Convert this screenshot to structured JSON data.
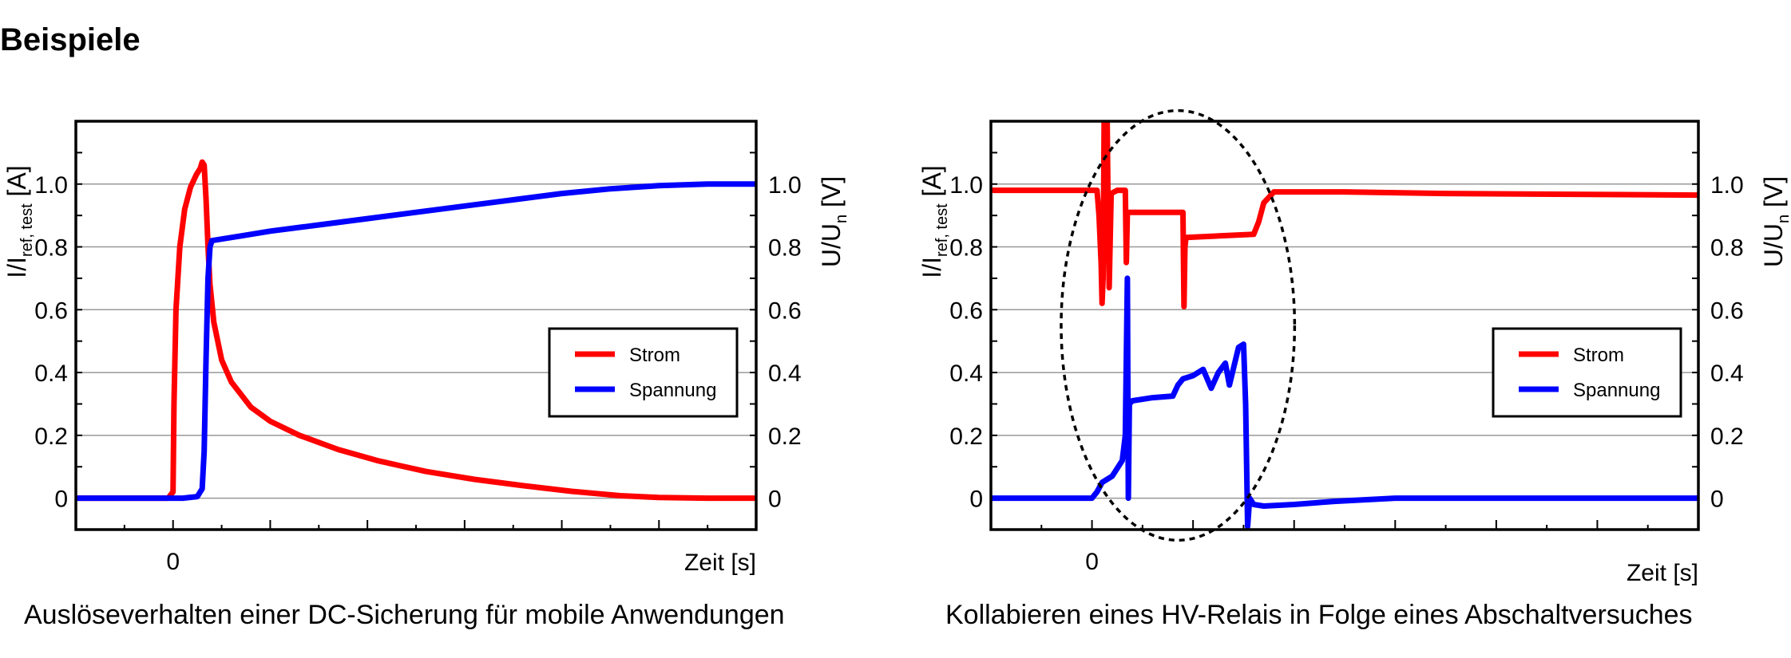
{
  "page": {
    "title": "Beispiele"
  },
  "chart_data": [
    {
      "type": "line",
      "caption": "Auslöseverhalten einer DC-Sicherung für mobile Anwendungen",
      "xlabel": "Zeit [s]",
      "x_tick_labels": [
        "0"
      ],
      "ylabel_left": {
        "main": "I/I",
        "sub": "ref, test",
        "unit": " [A]"
      },
      "ylabel_right": {
        "main": "U/U",
        "sub": "n",
        "unit": " [V]"
      },
      "ylim": [
        -0.1,
        1.2
      ],
      "xlim": [
        -1,
        6
      ],
      "y_ticks": [
        0,
        0.2,
        0.4,
        0.6,
        0.8,
        1.0
      ],
      "y_tick_labels": [
        "0",
        "0.2",
        "0.4",
        "0.6",
        "0.8",
        "1.0"
      ],
      "grid": true,
      "legend": {
        "placement": "right"
      },
      "series": [
        {
          "name": "Strom",
          "color": "#ff0000",
          "points": [
            [
              -1,
              0
            ],
            [
              -0.05,
              0
            ],
            [
              0,
              0.02
            ],
            [
              0.01,
              0.3
            ],
            [
              0.03,
              0.6
            ],
            [
              0.07,
              0.8
            ],
            [
              0.12,
              0.92
            ],
            [
              0.18,
              0.99
            ],
            [
              0.24,
              1.03
            ],
            [
              0.28,
              1.05
            ],
            [
              0.3,
              1.07
            ],
            [
              0.32,
              1.06
            ],
            [
              0.34,
              0.95
            ],
            [
              0.36,
              0.8
            ],
            [
              0.38,
              0.68
            ],
            [
              0.42,
              0.56
            ],
            [
              0.5,
              0.44
            ],
            [
              0.6,
              0.37
            ],
            [
              0.8,
              0.29
            ],
            [
              1.0,
              0.245
            ],
            [
              1.3,
              0.2
            ],
            [
              1.7,
              0.155
            ],
            [
              2.1,
              0.12
            ],
            [
              2.6,
              0.085
            ],
            [
              3.1,
              0.06
            ],
            [
              3.6,
              0.04
            ],
            [
              4.1,
              0.022
            ],
            [
              4.6,
              0.008
            ],
            [
              5.0,
              0.002
            ],
            [
              5.5,
              0
            ],
            [
              6,
              0
            ]
          ]
        },
        {
          "name": "Spannung",
          "color": "#0000ff",
          "points": [
            [
              -1,
              0
            ],
            [
              0.1,
              0
            ],
            [
              0.25,
              0.005
            ],
            [
              0.3,
              0.03
            ],
            [
              0.32,
              0.15
            ],
            [
              0.34,
              0.45
            ],
            [
              0.36,
              0.7
            ],
            [
              0.38,
              0.8
            ],
            [
              0.4,
              0.82
            ],
            [
              0.5,
              0.825
            ],
            [
              0.7,
              0.835
            ],
            [
              1.0,
              0.85
            ],
            [
              1.5,
              0.87
            ],
            [
              2.0,
              0.89
            ],
            [
              2.5,
              0.91
            ],
            [
              3.0,
              0.93
            ],
            [
              3.5,
              0.95
            ],
            [
              4.0,
              0.97
            ],
            [
              4.5,
              0.985
            ],
            [
              5.0,
              0.995
            ],
            [
              5.5,
              1.0
            ],
            [
              6,
              1.0
            ]
          ]
        }
      ]
    },
    {
      "type": "line",
      "caption": "Kollabieren eines HV-Relais in Folge eines Abschaltversuches",
      "xlabel": "Zeit [s]",
      "x_tick_labels": [
        "0"
      ],
      "ylabel_left": {
        "main": "I/I",
        "sub": "ref, test",
        "unit": " [A]"
      },
      "ylabel_right": {
        "main": "U/U",
        "sub": "n",
        "unit": " [V]"
      },
      "ylim": [
        -0.1,
        1.2
      ],
      "xlim": [
        -1,
        6
      ],
      "y_ticks": [
        0,
        0.2,
        0.4,
        0.6,
        0.8,
        1.0
      ],
      "y_tick_labels": [
        "0",
        "0.2",
        "0.4",
        "0.6",
        "0.8",
        "1.0"
      ],
      "grid": true,
      "legend": {
        "placement": "right"
      },
      "annotation": {
        "shape": "dashed-ellipse",
        "center": [
          0.85,
          0.55
        ],
        "radii": [
          1.5,
          0.72
        ]
      },
      "series": [
        {
          "name": "Strom",
          "color": "#ff0000",
          "points": [
            [
              -1,
              0.98
            ],
            [
              0.05,
              0.98
            ],
            [
              0.07,
              0.9
            ],
            [
              0.09,
              0.75
            ],
            [
              0.1,
              0.62
            ],
            [
              0.11,
              0.7
            ],
            [
              0.12,
              1.2
            ],
            [
              0.14,
              0.99
            ],
            [
              0.15,
              1.2
            ],
            [
              0.16,
              0.9
            ],
            [
              0.17,
              0.67
            ],
            [
              0.19,
              0.97
            ],
            [
              0.25,
              0.98
            ],
            [
              0.33,
              0.98
            ],
            [
              0.34,
              0.75
            ],
            [
              0.35,
              0.91
            ],
            [
              0.9,
              0.91
            ],
            [
              0.91,
              0.61
            ],
            [
              0.92,
              0.8
            ],
            [
              0.93,
              0.83
            ],
            [
              1.6,
              0.84
            ],
            [
              1.65,
              0.88
            ],
            [
              1.7,
              0.94
            ],
            [
              1.8,
              0.975
            ],
            [
              2.5,
              0.975
            ],
            [
              3.5,
              0.97
            ],
            [
              6,
              0.965
            ]
          ]
        },
        {
          "name": "Spannung",
          "color": "#0000ff",
          "points": [
            [
              -1,
              0
            ],
            [
              0.0,
              0
            ],
            [
              0.05,
              0.02
            ],
            [
              0.1,
              0.05
            ],
            [
              0.2,
              0.07
            ],
            [
              0.3,
              0.12
            ],
            [
              0.33,
              0.2
            ],
            [
              0.34,
              0.45
            ],
            [
              0.35,
              0.7
            ],
            [
              0.36,
              0
            ],
            [
              0.37,
              0.3
            ],
            [
              0.4,
              0.31
            ],
            [
              0.6,
              0.32
            ],
            [
              0.8,
              0.325
            ],
            [
              0.85,
              0.36
            ],
            [
              0.9,
              0.38
            ],
            [
              1.0,
              0.39
            ],
            [
              1.1,
              0.41
            ],
            [
              1.18,
              0.35
            ],
            [
              1.25,
              0.4
            ],
            [
              1.32,
              0.43
            ],
            [
              1.36,
              0.36
            ],
            [
              1.45,
              0.48
            ],
            [
              1.5,
              0.49
            ],
            [
              1.52,
              0.3
            ],
            [
              1.54,
              -0.09
            ],
            [
              1.56,
              0
            ],
            [
              1.6,
              -0.02
            ],
            [
              1.7,
              -0.025
            ],
            [
              2.0,
              -0.02
            ],
            [
              2.4,
              -0.01
            ],
            [
              3.0,
              0
            ],
            [
              6,
              0
            ]
          ]
        }
      ]
    }
  ]
}
